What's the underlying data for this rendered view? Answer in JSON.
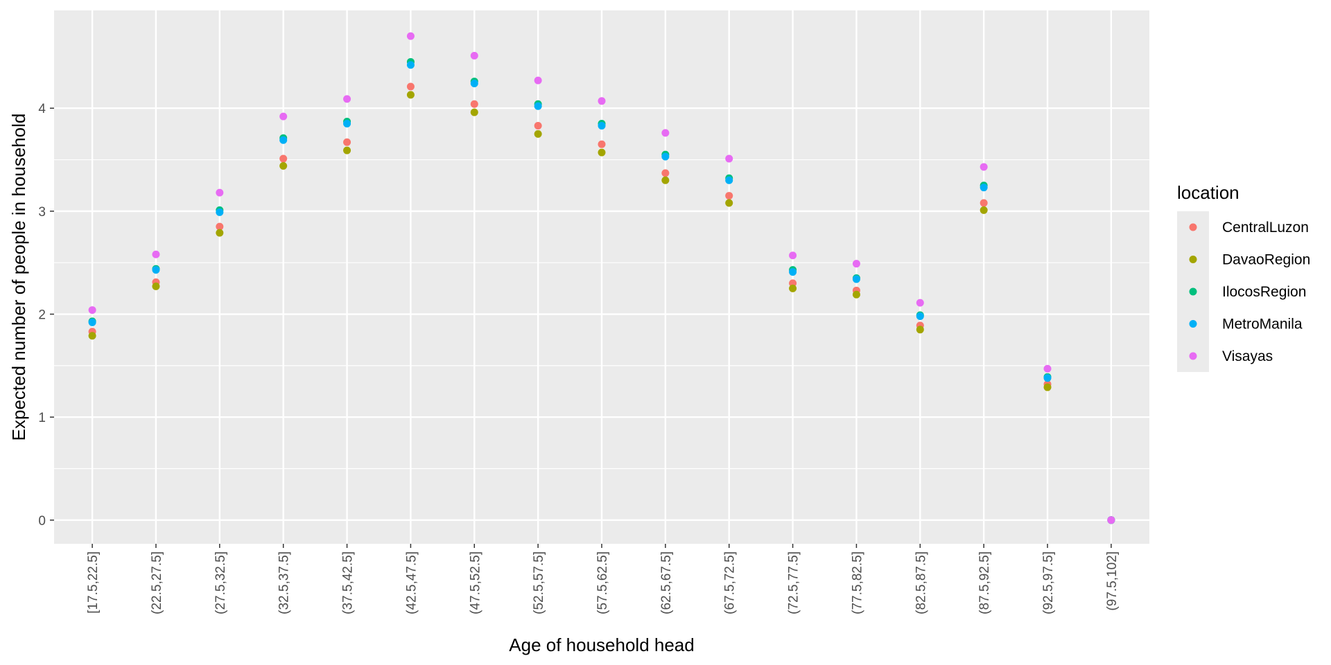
{
  "chart_data": {
    "type": "scatter",
    "xlabel": "Age of household head",
    "ylabel": "Expected number of people in household",
    "categories": [
      "[17.5,22.5]",
      "(22.5,27.5]",
      "(27.5,32.5]",
      "(32.5,37.5]",
      "(37.5,42.5]",
      "(42.5,47.5]",
      "(47.5,52.5]",
      "(52.5,57.5]",
      "(57.5,62.5]",
      "(62.5,67.5]",
      "(67.5,72.5]",
      "(72.5,77.5]",
      "(77.5,82.5]",
      "(82.5,87.5]",
      "(87.5,92.5]",
      "(92.5,97.5]",
      "(97.5,102]"
    ],
    "ylim": [
      -0.23,
      4.95
    ],
    "yticks": [
      0,
      1,
      2,
      3,
      4
    ],
    "grid": true,
    "legend": {
      "title": "location",
      "position": "right"
    },
    "series": [
      {
        "name": "CentralLuzon",
        "color": "#F8766D",
        "values": [
          1.83,
          2.31,
          2.85,
          3.51,
          3.67,
          4.21,
          4.04,
          3.83,
          3.65,
          3.37,
          3.15,
          2.3,
          2.23,
          1.89,
          3.08,
          1.32,
          0
        ]
      },
      {
        "name": "DavaoRegion",
        "color": "#A3A500",
        "values": [
          1.79,
          2.27,
          2.79,
          3.44,
          3.59,
          4.13,
          3.96,
          3.75,
          3.57,
          3.3,
          3.08,
          2.25,
          2.19,
          1.85,
          3.01,
          1.29,
          0
        ]
      },
      {
        "name": "IlocosRegion",
        "color": "#00BF7D",
        "values": [
          1.93,
          2.44,
          3.01,
          3.71,
          3.87,
          4.45,
          4.26,
          4.04,
          3.85,
          3.55,
          3.32,
          2.43,
          2.35,
          1.99,
          3.25,
          1.39,
          0
        ]
      },
      {
        "name": "MetroManila",
        "color": "#00B0F6",
        "values": [
          1.92,
          2.43,
          2.99,
          3.69,
          3.85,
          4.42,
          4.24,
          4.02,
          3.83,
          3.53,
          3.3,
          2.41,
          2.34,
          1.98,
          3.23,
          1.38,
          0
        ]
      },
      {
        "name": "Visayas",
        "color": "#E76BF3",
        "values": [
          2.04,
          2.58,
          3.18,
          3.92,
          4.09,
          4.7,
          4.51,
          4.27,
          4.07,
          3.76,
          3.51,
          2.57,
          2.49,
          2.11,
          3.43,
          1.47,
          0
        ]
      }
    ]
  }
}
